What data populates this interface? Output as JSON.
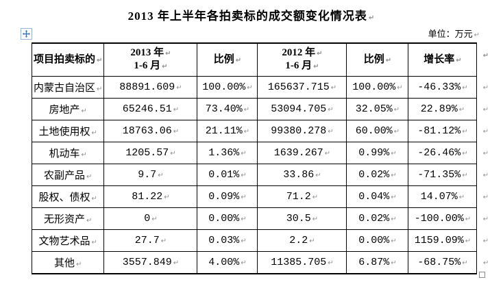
{
  "title": "2013 年上半年各拍卖标的成交额变化情况表",
  "unit_label": "单位：万元",
  "marks": {
    "paragraph_mark": "↵",
    "cell_mark": "↵",
    "row_mark": "↵"
  },
  "icons": {
    "move_icon": "table-move-cross",
    "resize_icon": "table-resize-square"
  },
  "colors": {
    "text": "#000000",
    "border": "#000000",
    "mark_gray": "#8f8f8f",
    "handle_blue": "#3e6db5",
    "handle_box_border": "#9ab6d6",
    "background": "#ffffff"
  },
  "table": {
    "columns": {
      "item": "项目拍卖标的",
      "y2013_line1": "2013 年",
      "y2013_line2": "1-6 月",
      "ratio2013": "比例",
      "y2012_line1": "2012 年",
      "y2012_line2": "1-6 月",
      "ratio2012": "比例",
      "growth": "增长率"
    },
    "rows": [
      {
        "item": "内蒙古自治区",
        "v2013": "88891.609",
        "r2013": "100.00%",
        "v2012": "165637.715",
        "r2012": "100.00%",
        "growth": "-46.33%"
      },
      {
        "item": "房地产",
        "v2013": "65246.51",
        "r2013": "73.40%",
        "v2012": "53094.705",
        "r2012": "32.05%",
        "growth": "22.89%"
      },
      {
        "item": "土地使用权",
        "v2013": "18763.06",
        "r2013": "21.11%",
        "v2012": "99380.278",
        "r2012": "60.00%",
        "growth": "-81.12%"
      },
      {
        "item": "机动车",
        "v2013": "1205.57",
        "r2013": "1.36%",
        "v2012": "1639.267",
        "r2012": "0.99%",
        "growth": "-26.46%"
      },
      {
        "item": "农副产品",
        "v2013": "9.7",
        "r2013": "0.01%",
        "v2012": "33.86",
        "r2012": "0.02%",
        "growth": "-71.35%"
      },
      {
        "item": "股权、债权",
        "v2013": "81.22",
        "r2013": "0.09%",
        "v2012": "71.2",
        "r2012": "0.04%",
        "growth": "14.07%"
      },
      {
        "item": "无形资产",
        "v2013": "0",
        "r2013": "0.00%",
        "v2012": "30.5",
        "r2012": "0.02%",
        "growth": "-100.00%"
      },
      {
        "item": "文物艺术品",
        "v2013": "27.7",
        "r2013": "0.03%",
        "v2012": "2.2",
        "r2012": "0.00%",
        "growth": "1159.09%"
      },
      {
        "item": "其他",
        "v2013": "3557.849",
        "r2013": "4.00%",
        "v2012": "11385.705",
        "r2012": "6.87%",
        "growth": "-68.75%"
      }
    ]
  }
}
